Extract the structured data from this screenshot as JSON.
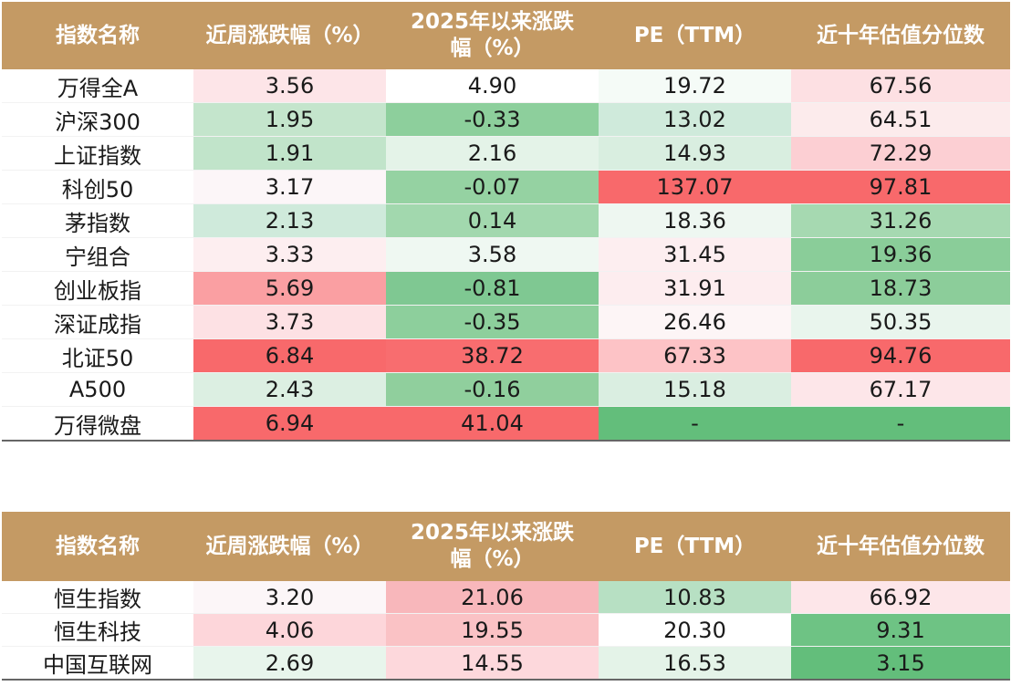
{
  "headers": [
    "指数名称",
    "近周涨跌幅（%）",
    "2025年以来涨跌\n幅（%）",
    "PE（TTM）",
    "近十年估值分位数"
  ],
  "table1": [
    {
      "name": "万得全A",
      "weekly": "3.56",
      "ytd": "4.90",
      "pe": "19.72",
      "pct": "67.56",
      "colors": [
        "#fde5e8",
        "#ffffff",
        "#f5fbf7",
        "#fde0e3"
      ]
    },
    {
      "name": "沪深300",
      "weekly": "1.95",
      "ytd": "-0.33",
      "pe": "13.02",
      "pct": "64.51",
      "colors": [
        "#c4e5cc",
        "#8dcf9c",
        "#cfeadb",
        "#fcebec"
      ]
    },
    {
      "name": "上证指数",
      "weekly": "1.91",
      "ytd": "2.16",
      "pe": "14.93",
      "pct": "72.29",
      "colors": [
        "#c1e4ca",
        "#e4f3e8",
        "#d9eee0",
        "#fccfd3"
      ]
    },
    {
      "name": "科创50",
      "weekly": "3.17",
      "ytd": "-0.07",
      "pe": "137.07",
      "pct": "97.81",
      "colors": [
        "#fcf6f8",
        "#95d2a2",
        "#f8696b",
        "#f8696b"
      ]
    },
    {
      "name": "茅指数",
      "weekly": "2.13",
      "ytd": "0.14",
      "pe": "18.36",
      "pct": "31.26",
      "colors": [
        "#cfeadb",
        "#a2d8ae",
        "#eef7f1",
        "#a6d9b1"
      ]
    },
    {
      "name": "宁组合",
      "weekly": "3.33",
      "ytd": "3.58",
      "pe": "31.45",
      "pct": "19.36",
      "colors": [
        "#fdeef0",
        "#eff8f2",
        "#fdeef0",
        "#8acd99"
      ]
    },
    {
      "name": "创业板指",
      "weekly": "5.69",
      "ytd": "-0.81",
      "pe": "31.91",
      "pct": "18.73",
      "colors": [
        "#fa9fa2",
        "#7fc892",
        "#fdedef",
        "#8ccd9a"
      ]
    },
    {
      "name": "深证成指",
      "weekly": "3.73",
      "ytd": "-0.35",
      "pe": "26.46",
      "pct": "50.35",
      "colors": [
        "#fde1e4",
        "#8dcf9c",
        "#fdf5f6",
        "#e9f5ed"
      ]
    },
    {
      "name": "北证50",
      "weekly": "6.84",
      "ytd": "38.72",
      "pe": "67.33",
      "pct": "94.76",
      "colors": [
        "#f8696b",
        "#f86d6f",
        "#fdc3c6",
        "#f8696b"
      ]
    },
    {
      "name": "A500",
      "weekly": "2.43",
      "ytd": "-0.16",
      "pe": "15.18",
      "pct": "67.17",
      "colors": [
        "#dcefe2",
        "#90cf9d",
        "#daeee1",
        "#fde6e9"
      ]
    },
    {
      "name": "万得微盘",
      "weekly": "6.94",
      "ytd": "41.04",
      "pe": "-",
      "pct": "-",
      "colors": [
        "#f8696b",
        "#f8696b",
        "#63be7b",
        "#63be7b"
      ]
    }
  ],
  "table2": [
    {
      "name": "恒生指数",
      "weekly": "3.20",
      "ytd": "21.06",
      "pe": "10.83",
      "pct": "66.92",
      "colors": [
        "#fcf6f8",
        "#f8b7bb",
        "#b7e0c3",
        "#fde6e9"
      ]
    },
    {
      "name": "恒生科技",
      "weekly": "4.06",
      "ytd": "19.55",
      "pe": "20.30",
      "pct": "9.31",
      "colors": [
        "#fdd6da",
        "#fac2c5",
        "#ffffff",
        "#6ec384"
      ]
    },
    {
      "name": "中国互联网",
      "weekly": "2.69",
      "ytd": "14.55",
      "pe": "16.53",
      "pct": "3.15",
      "colors": [
        "#e8f5ec",
        "#fdd8dc",
        "#e4f3e8",
        "#63be7b"
      ]
    }
  ]
}
